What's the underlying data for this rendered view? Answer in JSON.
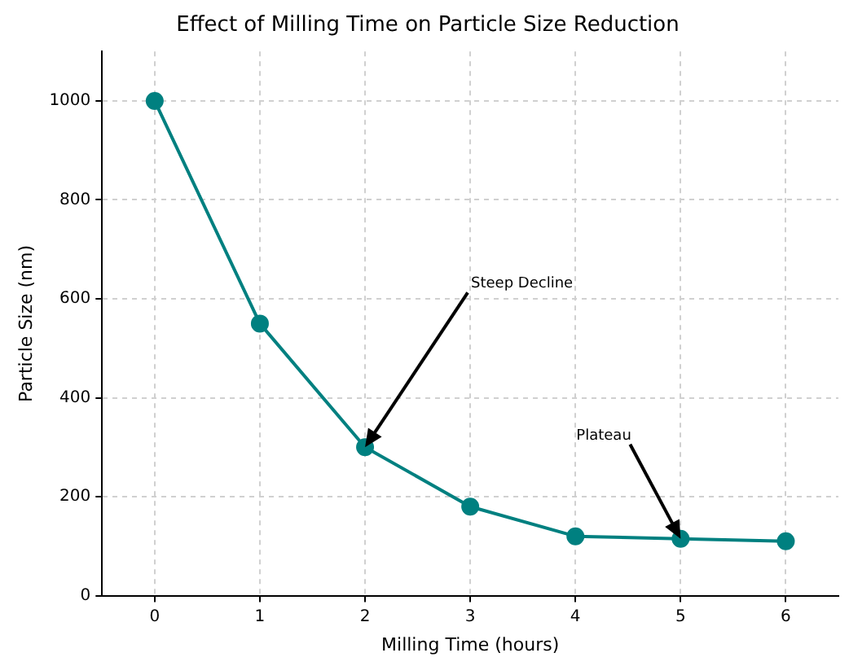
{
  "chart_data": {
    "type": "line",
    "title": "Effect of Milling Time on Particle Size Reduction",
    "xlabel": "Milling Time (hours)",
    "ylabel": "Particle Size (nm)",
    "x": [
      0,
      1,
      2,
      3,
      4,
      5,
      6
    ],
    "series": [
      {
        "color": "#008080",
        "values": [
          1000,
          550,
          300,
          180,
          120,
          115,
          110
        ]
      }
    ],
    "xlim": [
      -0.5,
      6.5
    ],
    "xticks": [
      0,
      1,
      2,
      3,
      4,
      5,
      6
    ],
    "ylim": [
      0,
      1100
    ],
    "yticks": [
      0,
      200,
      400,
      600,
      800,
      1000
    ],
    "grid": true,
    "marker": "circle",
    "line_style": "solid",
    "legend": false,
    "annotations": [
      {
        "text": "Steep Decline",
        "x": 2,
        "y": 300
      },
      {
        "text": "Plateau",
        "x": 5,
        "y": 115
      }
    ]
  }
}
